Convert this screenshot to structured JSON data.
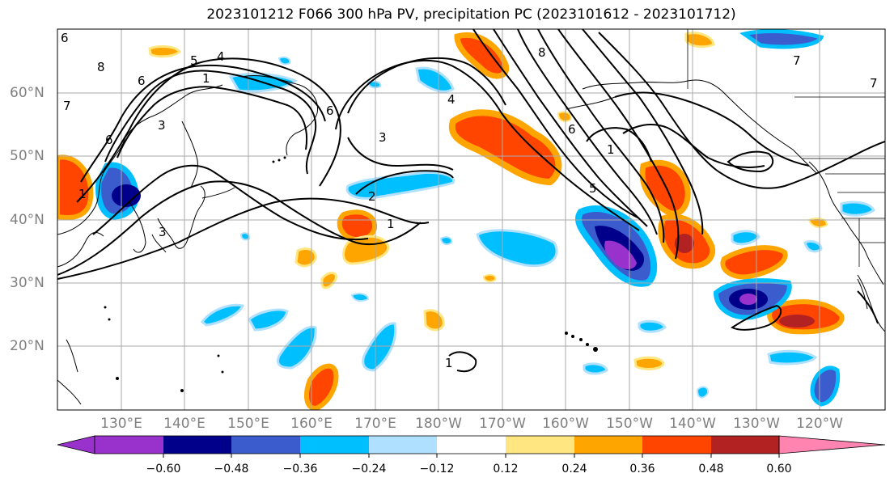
{
  "title": "2023101212 F066 300 hPa PV, precipitation PC (2023101612 - 2023101712)",
  "latitude_labels": [
    "60°N",
    "50°N",
    "40°N",
    "30°N",
    "20°N"
  ],
  "longitude_labels": [
    "130°E",
    "140°E",
    "150°E",
    "160°E",
    "170°E",
    "180°W",
    "170°W",
    "160°W",
    "150°W",
    "140°W",
    "130°W",
    "120°W"
  ],
  "contour_labels": [
    "8",
    "6",
    "5",
    "4",
    "1",
    "7",
    "6",
    "2",
    "3",
    "4",
    "6",
    "1",
    "5",
    "8",
    "6",
    "7",
    "1",
    "3",
    "6",
    "1",
    "3",
    "1",
    "7"
  ],
  "colorbar": {
    "tick_labels": [
      "−0.60",
      "−0.48",
      "−0.36",
      "−0.24",
      "−0.12",
      "0.12",
      "0.24",
      "0.36",
      "0.48",
      "0.60"
    ],
    "colors": [
      "#9932cc",
      "#00008b",
      "#3a5ccc",
      "#00bfff",
      "#b0e0ff",
      "#ffffff",
      "#ffe680",
      "#ffa500",
      "#ff4500",
      "#b22222",
      "#ff85b0"
    ],
    "extend": "both"
  },
  "colors": {
    "land_outline": "#000000",
    "grid": "#aaaaaa",
    "pv_contour": "#000000"
  }
}
